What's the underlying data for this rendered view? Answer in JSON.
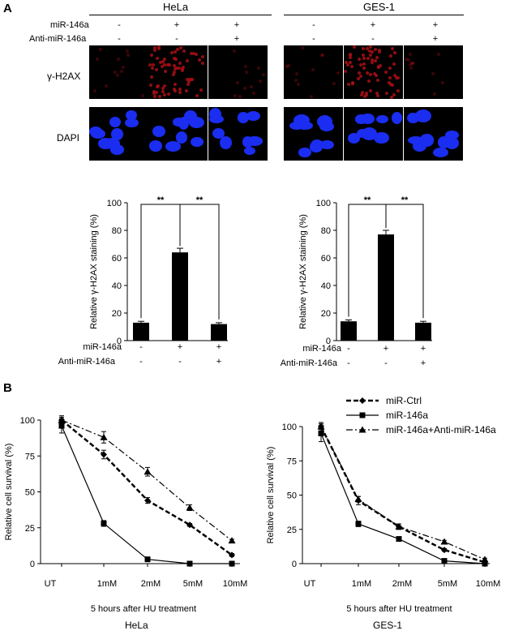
{
  "panel_a": {
    "letter": "A",
    "cell_lines": [
      "HeLa",
      "GES-1"
    ],
    "row_labels": {
      "mir": "miR-146a",
      "anti": "Anti-miR-146a"
    },
    "signs": {
      "mir": [
        "-",
        "+",
        "+"
      ],
      "anti": [
        "-",
        "-",
        "+"
      ]
    },
    "stain_labels": {
      "h2ax": "γ-H2AX",
      "dapi": "DAPI"
    },
    "significance": "**"
  },
  "panel_b": {
    "letter": "B",
    "xlabel": "5 hours after HU treatment",
    "cell_lines": [
      "HeLa",
      "GES-1"
    ]
  },
  "chart_data": [
    {
      "type": "bar",
      "panel": "A-HeLa",
      "categories": [
        "-/-",
        "+/-",
        "+/+"
      ],
      "values": [
        13,
        64,
        12
      ],
      "errors": [
        1,
        3,
        1
      ],
      "ylabel": "Relative γ-H2AX staining (%)",
      "ylim": [
        0,
        100
      ],
      "yticks": [
        "0",
        "20",
        "40",
        "60",
        "80",
        "100"
      ]
    },
    {
      "type": "bar",
      "panel": "A-GES-1",
      "categories": [
        "-/-",
        "+/-",
        "+/+"
      ],
      "values": [
        14,
        77,
        13
      ],
      "errors": [
        1,
        3,
        1
      ],
      "ylabel": "Relative γ-H2AX staining (%)",
      "ylim": [
        0,
        100
      ],
      "yticks": [
        "0",
        "20",
        "40",
        "60",
        "80",
        "100"
      ]
    },
    {
      "type": "line",
      "panel": "B-HeLa",
      "x": [
        "UT",
        "1mM",
        "2mM",
        "5mM",
        "10mM"
      ],
      "series": [
        {
          "name": "miR-Ctrl",
          "values": [
            100,
            76,
            44,
            27,
            6
          ]
        },
        {
          "name": "miR-146a",
          "values": [
            96,
            28,
            3,
            0,
            0
          ]
        },
        {
          "name": "miR-146a+Anti-miR-146a",
          "values": [
            100,
            88,
            64,
            39,
            16
          ]
        }
      ],
      "errors": [
        [
          3,
          3,
          2,
          1,
          1
        ],
        [
          5,
          2,
          1,
          0,
          0
        ],
        [
          2,
          4,
          3,
          2,
          1
        ]
      ],
      "ylabel": "Relative cell survival (%)",
      "xlabel": "5 hours after HU treatment",
      "ylim": [
        0,
        100
      ],
      "yticks": [
        "0",
        "25",
        "50",
        "75",
        "100"
      ]
    },
    {
      "type": "line",
      "panel": "B-GES-1",
      "x": [
        "UT",
        "1mM",
        "2mM",
        "5mM",
        "10mM"
      ],
      "series": [
        {
          "name": "miR-Ctrl",
          "values": [
            100,
            46,
            27,
            10,
            1
          ]
        },
        {
          "name": "miR-146a",
          "values": [
            95,
            29,
            18,
            2,
            0
          ]
        },
        {
          "name": "miR-146a+Anti-miR-146a",
          "values": [
            100,
            47,
            27,
            16,
            3
          ]
        }
      ],
      "errors": [
        [
          3,
          3,
          2,
          1,
          1
        ],
        [
          6,
          2,
          1,
          1,
          0
        ],
        [
          2,
          2,
          2,
          1,
          1
        ]
      ],
      "ylabel": "Relative cell survival (%)",
      "xlabel": "5 hours after HU treatment",
      "ylim": [
        0,
        100
      ],
      "yticks": [
        "0",
        "25",
        "50",
        "75",
        "100"
      ]
    }
  ]
}
